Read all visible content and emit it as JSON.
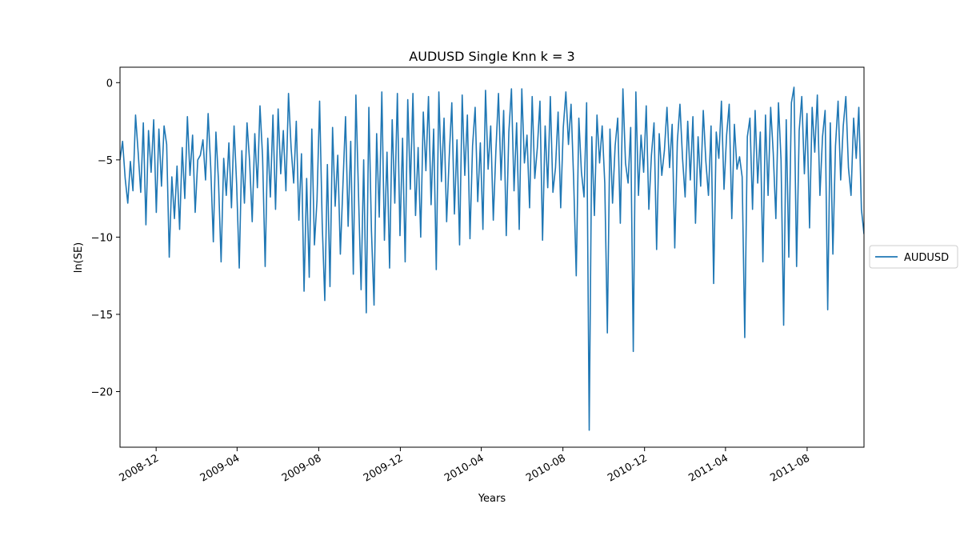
{
  "chart_data": {
    "type": "line",
    "title": "AUDUSD Single Knn k = 3",
    "xlabel": "Years",
    "ylabel": "ln(SE)",
    "ylim": [
      -23.6,
      1.0
    ],
    "xlim": [
      "2008-10-08",
      "2011-10-25"
    ],
    "y_ticks": [
      0,
      -5,
      -10,
      -15,
      -20
    ],
    "y_tick_labels": [
      "0",
      "−5",
      "−10",
      "−15",
      "−20"
    ],
    "x_ticks": [
      "2008-12-01",
      "2009-04-01",
      "2009-08-01",
      "2009-12-01",
      "2010-04-01",
      "2010-08-01",
      "2010-12-01",
      "2011-04-01",
      "2011-08-01"
    ],
    "x_tick_labels": [
      "2008-12",
      "2009-04",
      "2009-08",
      "2009-12",
      "2010-04",
      "2010-08",
      "2010-12",
      "2011-04",
      "2011-08"
    ],
    "grid": false,
    "legend_position": "outside-right",
    "series": [
      {
        "name": "AUDUSD",
        "color": "#1f77b4",
        "x_start": "2008-10-08",
        "x_end": "2011-10-25",
        "values": [
          -5.0,
          -3.8,
          -6.2,
          -7.8,
          -5.1,
          -7.0,
          -2.1,
          -4.5,
          -7.1,
          -2.6,
          -9.2,
          -3.1,
          -5.8,
          -2.4,
          -8.4,
          -3.0,
          -6.7,
          -2.8,
          -4.0,
          -11.3,
          -6.1,
          -8.8,
          -5.4,
          -9.5,
          -4.2,
          -7.5,
          -2.2,
          -6.0,
          -3.4,
          -8.4,
          -5.0,
          -4.7,
          -3.7,
          -6.3,
          -2.0,
          -5.5,
          -10.3,
          -3.2,
          -6.4,
          -11.6,
          -4.9,
          -7.3,
          -3.9,
          -8.1,
          -2.8,
          -6.6,
          -12.0,
          -4.4,
          -7.8,
          -2.6,
          -5.1,
          -9.0,
          -3.3,
          -6.8,
          -1.5,
          -4.8,
          -11.9,
          -3.6,
          -7.4,
          -2.1,
          -8.2,
          -1.7,
          -5.9,
          -3.1,
          -7.0,
          -0.7,
          -4.2,
          -6.5,
          -2.5,
          -8.9,
          -4.6,
          -13.5,
          -6.2,
          -12.6,
          -3.0,
          -10.5,
          -7.6,
          -1.2,
          -9.1,
          -14.1,
          -5.3,
          -13.2,
          -2.9,
          -8.0,
          -4.7,
          -11.1,
          -6.6,
          -2.2,
          -9.3,
          -3.8,
          -12.4,
          -0.8,
          -7.2,
          -13.4,
          -5.0,
          -14.9,
          -1.6,
          -9.6,
          -14.4,
          -3.3,
          -8.7,
          -0.6,
          -10.2,
          -4.5,
          -12.0,
          -2.4,
          -7.8,
          -0.7,
          -9.9,
          -3.6,
          -11.6,
          -1.1,
          -6.9,
          -0.7,
          -8.6,
          -4.2,
          -10.0,
          -1.9,
          -5.7,
          -0.9,
          -7.9,
          -3.0,
          -12.1,
          -0.6,
          -6.4,
          -2.3,
          -9.0,
          -4.8,
          -1.3,
          -8.5,
          -3.7,
          -10.5,
          -0.8,
          -6.0,
          -2.1,
          -10.1,
          -4.1,
          -1.6,
          -7.7,
          -3.9,
          -9.5,
          -0.5,
          -5.6,
          -2.8,
          -8.9,
          -4.4,
          -0.7,
          -6.3,
          -1.8,
          -9.9,
          -3.2,
          -0.4,
          -7.0,
          -2.6,
          -9.5,
          -0.4,
          -5.2,
          -3.4,
          -8.1,
          -0.9,
          -6.2,
          -4.2,
          -1.2,
          -10.2,
          -2.8,
          -6.8,
          -0.9,
          -7.1,
          -5.5,
          -1.9,
          -8.1,
          -2.9,
          -0.6,
          -4.0,
          -1.4,
          -6.3,
          -12.5,
          -2.3,
          -5.8,
          -7.4,
          -1.3,
          -22.5,
          -3.5,
          -8.6,
          -2.1,
          -5.2,
          -2.8,
          -6.5,
          -16.2,
          -3.0,
          -7.8,
          -4.1,
          -2.3,
          -9.1,
          -0.4,
          -5.2,
          -6.5,
          -2.9,
          -17.4,
          -0.6,
          -7.3,
          -3.4,
          -5.8,
          -1.5,
          -8.2,
          -4.7,
          -2.6,
          -10.8,
          -3.3,
          -6.0,
          -4.4,
          -1.6,
          -5.5,
          -2.7,
          -10.7,
          -3.8,
          -1.4,
          -4.9,
          -7.4,
          -2.5,
          -6.3,
          -2.2,
          -9.1,
          -3.5,
          -6.7,
          -1.8,
          -5.1,
          -7.3,
          -2.8,
          -13.0,
          -3.2,
          -4.9,
          -1.2,
          -6.9,
          -3.4,
          -1.4,
          -8.8,
          -2.7,
          -5.6,
          -4.8,
          -6.1,
          -16.5,
          -3.5,
          -2.3,
          -8.2,
          -1.8,
          -6.5,
          -3.2,
          -11.6,
          -2.1,
          -7.3,
          -1.6,
          -4.6,
          -8.8,
          -1.3,
          -5.0,
          -15.7,
          -2.4,
          -11.3,
          -1.3,
          -0.3,
          -11.9,
          -3.1,
          -0.9,
          -5.9,
          -2.0,
          -9.4,
          -1.6,
          -4.5,
          -0.8,
          -7.3,
          -3.5,
          -1.8,
          -14.7,
          -2.6,
          -11.1,
          -4.1,
          -1.2,
          -6.3,
          -2.8,
          -0.9,
          -5.5,
          -7.3,
          -2.3,
          -4.9,
          -1.6,
          -8.2,
          -9.8
        ]
      }
    ]
  }
}
